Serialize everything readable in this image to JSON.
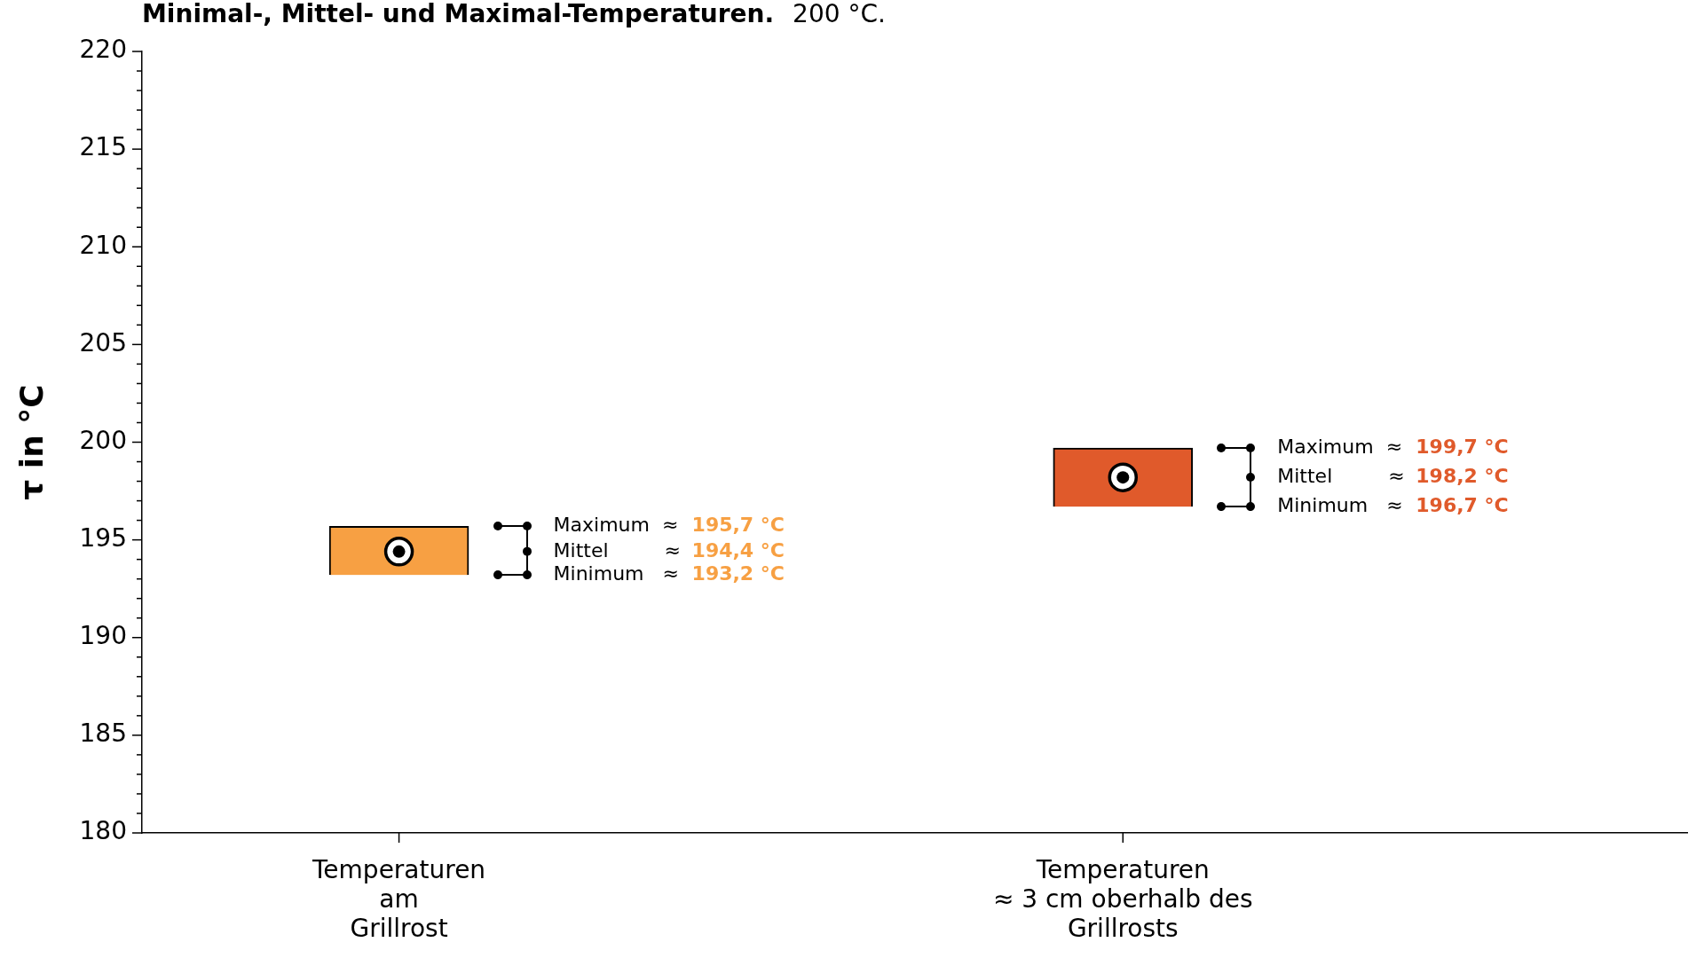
{
  "chart_data": {
    "type": "bar",
    "title": "Minimal-, Mittel- und Maximal-Temperaturen.",
    "subtitle": "200 °C.",
    "ylabel": "τ in °C",
    "categories": [
      "Temperaturen\nam\nGrillrost",
      "Temperaturen\n≈ 3 cm oberhalb des\nGrillrosts"
    ],
    "series": [
      {
        "values": [
          2.5,
          3
        ],
        "base": [
          193.2,
          196.7
        ],
        "colors": [
          "#f7a043",
          "#e05a2b"
        ]
      },
      {
        "type": "scatter",
        "x": [
          "Temperaturen\nam\nGrillrost",
          "Temperaturen\n≈ 3 cm oberhalb des\nGrillrosts"
        ],
        "values": [
          194.4,
          198.2
        ],
        "color": "#000000",
        "marker": "circle"
      }
    ],
    "ylim": [
      180,
      220
    ],
    "yticks": [
      180,
      {
        "value": 181,
        "label": null
      },
      {
        "value": 182,
        "label": null
      },
      {
        "value": 183,
        "label": null
      },
      {
        "value": 184,
        "label": null
      },
      185,
      {
        "value": 186,
        "label": null
      },
      {
        "value": 187,
        "label": null
      },
      {
        "value": 188,
        "label": null
      },
      {
        "value": 189,
        "label": null
      },
      190,
      {
        "value": 191,
        "label": null
      },
      {
        "value": 192,
        "label": null
      },
      {
        "value": 193,
        "label": null
      },
      {
        "value": 194,
        "label": null
      },
      195,
      {
        "value": 196,
        "label": null
      },
      {
        "value": 197,
        "label": null
      },
      {
        "value": 198,
        "label": null
      },
      {
        "value": 199,
        "label": null
      },
      200,
      {
        "value": 201,
        "label": null
      },
      {
        "value": 202,
        "label": null
      },
      {
        "value": 203,
        "label": null
      },
      {
        "value": 204,
        "label": null
      },
      205,
      {
        "value": 206,
        "label": null
      },
      {
        "value": 207,
        "label": null
      },
      {
        "value": 208,
        "label": null
      },
      {
        "value": 209,
        "label": null
      },
      210,
      {
        "value": 211,
        "label": null
      },
      {
        "value": 212,
        "label": null
      },
      {
        "value": 213,
        "label": null
      },
      {
        "value": 214,
        "label": null
      },
      215,
      {
        "value": 216,
        "label": null
      },
      {
        "value": 217,
        "label": null
      },
      {
        "value": 218,
        "label": null
      },
      {
        "value": 219,
        "label": null
      },
      220
    ],
    "annotations": [
      "Maximum ≈ 195,7 °C",
      "Mittel ≈ 194,4 °C",
      "Minimum ≈ 193,2 °C",
      "Maximum ≈ 199,7 °C",
      "Mittel ≈ 198,2 °C",
      "Minimum ≈ 196,7 °C"
    ]
  }
}
